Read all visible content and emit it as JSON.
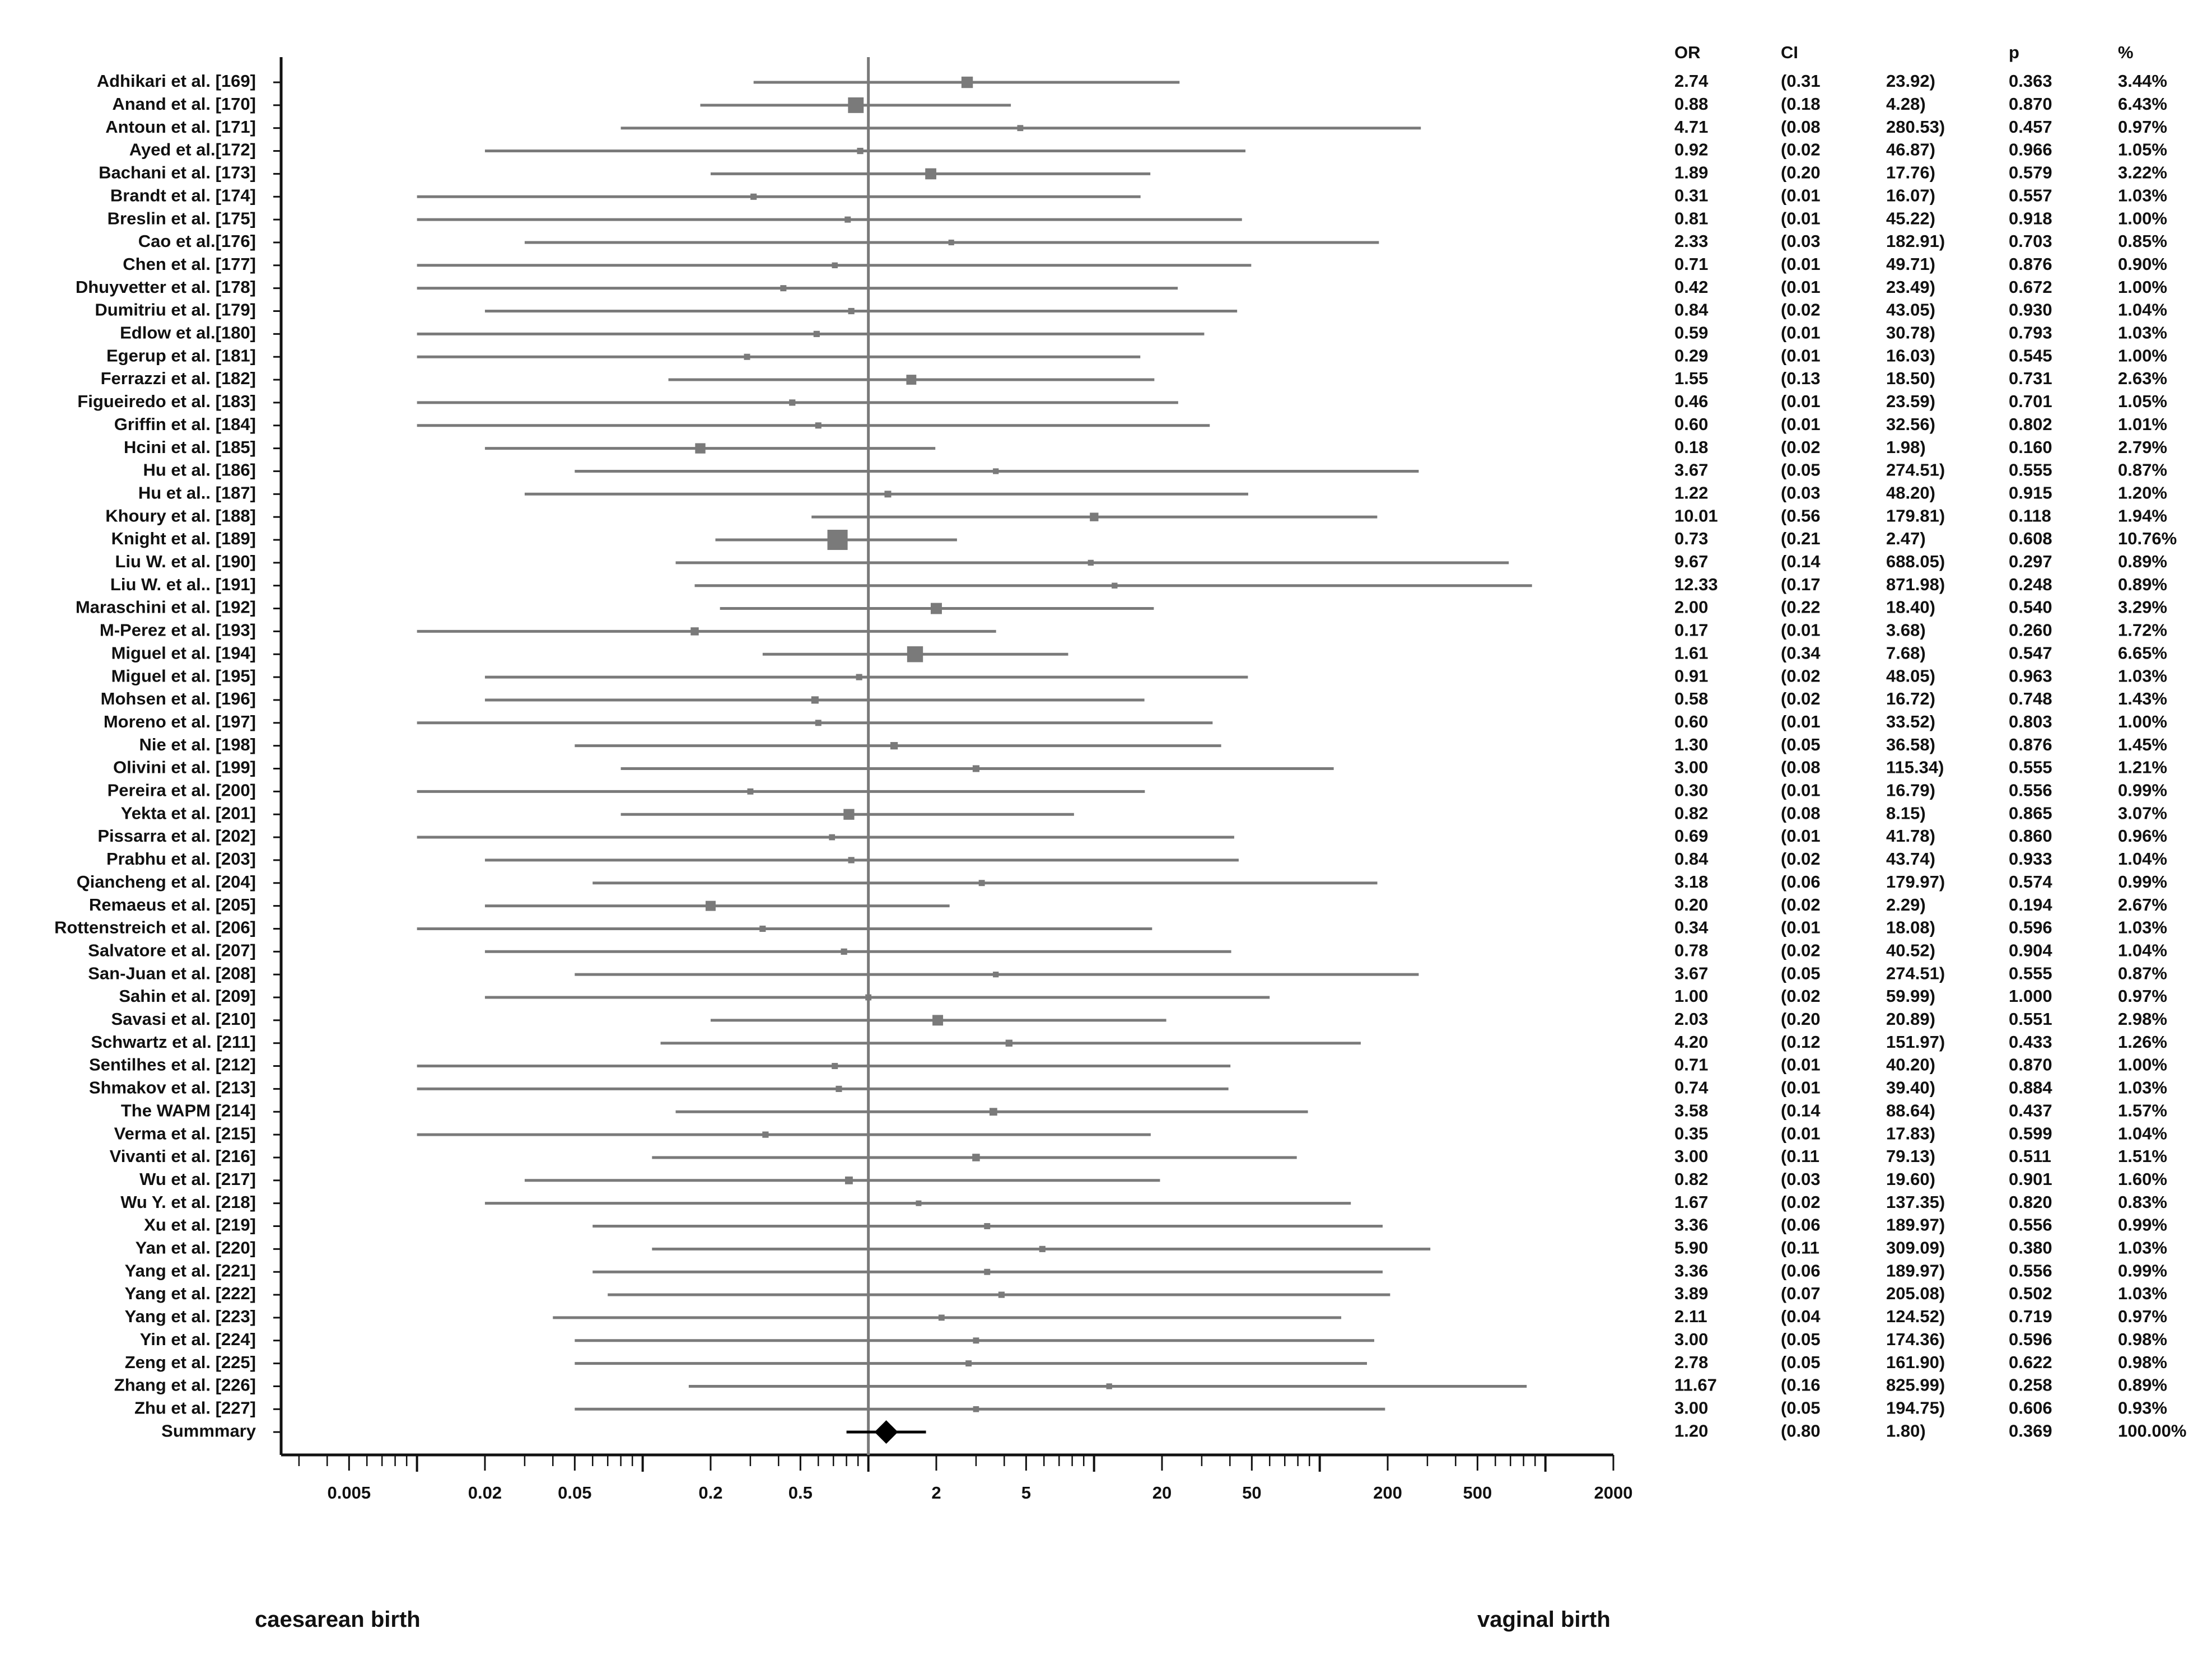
{
  "chart_data": {
    "type": "forest",
    "x_scale": "log",
    "x_ticks": [
      "0.005",
      "0.02",
      "0.05",
      "0.2",
      "0.5",
      "2",
      "5",
      "20",
      "50",
      "200",
      "500",
      "2000"
    ],
    "reference_line": 1,
    "column_headers": {
      "or": "OR",
      "ci": "CI",
      "p": "p",
      "pct": "%"
    },
    "left_caption": "caesarean birth",
    "right_caption": "vaginal birth",
    "colors": {
      "study": "#7a7a7a",
      "summary": "#000000",
      "axis": "#111111"
    },
    "studies": [
      {
        "name": "Adhikari et al. [169]",
        "or": "2.74",
        "lo": "(0.31",
        "hi": "23.92)",
        "p": "0.363",
        "w": "3.44%"
      },
      {
        "name": "Anand et al. [170]",
        "or": "0.88",
        "lo": "(0.18",
        "hi": "4.28)",
        "p": "0.870",
        "w": "6.43%"
      },
      {
        "name": "Antoun et al. [171]",
        "or": "4.71",
        "lo": "(0.08",
        "hi": "280.53)",
        "p": "0.457",
        "w": "0.97%"
      },
      {
        "name": "Ayed et al.[172]",
        "or": "0.92",
        "lo": "(0.02",
        "hi": "46.87)",
        "p": "0.966",
        "w": "1.05%"
      },
      {
        "name": "Bachani et al. [173]",
        "or": "1.89",
        "lo": "(0.20",
        "hi": "17.76)",
        "p": "0.579",
        "w": "3.22%"
      },
      {
        "name": "Brandt et al. [174]",
        "or": "0.31",
        "lo": "(0.01",
        "hi": "16.07)",
        "p": "0.557",
        "w": "1.03%"
      },
      {
        "name": "Breslin et al. [175]",
        "or": "0.81",
        "lo": "(0.01",
        "hi": "45.22)",
        "p": "0.918",
        "w": "1.00%"
      },
      {
        "name": "Cao et al.[176]",
        "or": "2.33",
        "lo": "(0.03",
        "hi": "182.91)",
        "p": "0.703",
        "w": "0.85%"
      },
      {
        "name": "Chen et al. [177]",
        "or": "0.71",
        "lo": "(0.01",
        "hi": "49.71)",
        "p": "0.876",
        "w": "0.90%"
      },
      {
        "name": "Dhuyvetter et al. [178]",
        "or": "0.42",
        "lo": "(0.01",
        "hi": "23.49)",
        "p": "0.672",
        "w": "1.00%"
      },
      {
        "name": "Dumitriu et al. [179]",
        "or": "0.84",
        "lo": "(0.02",
        "hi": "43.05)",
        "p": "0.930",
        "w": "1.04%"
      },
      {
        "name": "Edlow et al.[180]",
        "or": "0.59",
        "lo": "(0.01",
        "hi": "30.78)",
        "p": "0.793",
        "w": "1.03%"
      },
      {
        "name": "Egerup et al. [181]",
        "or": "0.29",
        "lo": "(0.01",
        "hi": "16.03)",
        "p": "0.545",
        "w": "1.00%"
      },
      {
        "name": "Ferrazzi et al. [182]",
        "or": "1.55",
        "lo": "(0.13",
        "hi": "18.50)",
        "p": "0.731",
        "w": "2.63%"
      },
      {
        "name": "Figueiredo et al. [183]",
        "or": "0.46",
        "lo": "(0.01",
        "hi": "23.59)",
        "p": "0.701",
        "w": "1.05%"
      },
      {
        "name": "Griffin et al. [184]",
        "or": "0.60",
        "lo": "(0.01",
        "hi": "32.56)",
        "p": "0.802",
        "w": "1.01%"
      },
      {
        "name": "Hcini et al. [185]",
        "or": "0.18",
        "lo": "(0.02",
        "hi": "1.98)",
        "p": "0.160",
        "w": "2.79%"
      },
      {
        "name": "Hu et al. [186]",
        "or": "3.67",
        "lo": "(0.05",
        "hi": "274.51)",
        "p": "0.555",
        "w": "0.87%"
      },
      {
        "name": "Hu et al.. [187]",
        "or": "1.22",
        "lo": "(0.03",
        "hi": "48.20)",
        "p": "0.915",
        "w": "1.20%"
      },
      {
        "name": "Khoury et al. [188]",
        "or": "10.01",
        "lo": "(0.56",
        "hi": "179.81)",
        "p": "0.118",
        "w": "1.94%"
      },
      {
        "name": "Knight et al. [189]",
        "or": "0.73",
        "lo": "(0.21",
        "hi": "2.47)",
        "p": "0.608",
        "w": "10.76%"
      },
      {
        "name": "Liu W. et al. [190]",
        "or": "9.67",
        "lo": "(0.14",
        "hi": "688.05)",
        "p": "0.297",
        "w": "0.89%"
      },
      {
        "name": "Liu W. et al.. [191]",
        "or": "12.33",
        "lo": "(0.17",
        "hi": "871.98)",
        "p": "0.248",
        "w": "0.89%"
      },
      {
        "name": "Maraschini et al. [192]",
        "or": "2.00",
        "lo": "(0.22",
        "hi": "18.40)",
        "p": "0.540",
        "w": "3.29%"
      },
      {
        "name": "M-Perez et al. [193]",
        "or": "0.17",
        "lo": "(0.01",
        "hi": "3.68)",
        "p": "0.260",
        "w": "1.72%"
      },
      {
        "name": "Miguel et al. [194]",
        "or": "1.61",
        "lo": "(0.34",
        "hi": "7.68)",
        "p": "0.547",
        "w": "6.65%"
      },
      {
        "name": "Miguel et al. [195]",
        "or": "0.91",
        "lo": "(0.02",
        "hi": "48.05)",
        "p": "0.963",
        "w": "1.03%"
      },
      {
        "name": "Mohsen et al. [196]",
        "or": "0.58",
        "lo": "(0.02",
        "hi": "16.72)",
        "p": "0.748",
        "w": "1.43%"
      },
      {
        "name": "Moreno et al. [197]",
        "or": "0.60",
        "lo": "(0.01",
        "hi": "33.52)",
        "p": "0.803",
        "w": "1.00%"
      },
      {
        "name": "Nie et al. [198]",
        "or": "1.30",
        "lo": "(0.05",
        "hi": "36.58)",
        "p": "0.876",
        "w": "1.45%"
      },
      {
        "name": "Olivini et al. [199]",
        "or": "3.00",
        "lo": "(0.08",
        "hi": "115.34)",
        "p": "0.555",
        "w": "1.21%"
      },
      {
        "name": "Pereira et al. [200]",
        "or": "0.30",
        "lo": "(0.01",
        "hi": "16.79)",
        "p": "0.556",
        "w": "0.99%"
      },
      {
        "name": "Yekta et al. [201]",
        "or": "0.82",
        "lo": "(0.08",
        "hi": "8.15)",
        "p": "0.865",
        "w": "3.07%"
      },
      {
        "name": "Pissarra et al. [202]",
        "or": "0.69",
        "lo": "(0.01",
        "hi": "41.78)",
        "p": "0.860",
        "w": "0.96%"
      },
      {
        "name": "Prabhu et al. [203]",
        "or": "0.84",
        "lo": "(0.02",
        "hi": "43.74)",
        "p": "0.933",
        "w": "1.04%"
      },
      {
        "name": "Qiancheng et al. [204]",
        "or": "3.18",
        "lo": "(0.06",
        "hi": "179.97)",
        "p": "0.574",
        "w": "0.99%"
      },
      {
        "name": "Remaeus et al. [205]",
        "or": "0.20",
        "lo": "(0.02",
        "hi": "2.29)",
        "p": "0.194",
        "w": "2.67%"
      },
      {
        "name": "Rottenstreich et al. [206]",
        "or": "0.34",
        "lo": "(0.01",
        "hi": "18.08)",
        "p": "0.596",
        "w": "1.03%"
      },
      {
        "name": "Salvatore et al. [207]",
        "or": "0.78",
        "lo": "(0.02",
        "hi": "40.52)",
        "p": "0.904",
        "w": "1.04%"
      },
      {
        "name": "San-Juan et al. [208]",
        "or": "3.67",
        "lo": "(0.05",
        "hi": "274.51)",
        "p": "0.555",
        "w": "0.87%"
      },
      {
        "name": "Sahin et al. [209]",
        "or": "1.00",
        "lo": "(0.02",
        "hi": "59.99)",
        "p": "1.000",
        "w": "0.97%"
      },
      {
        "name": "Savasi et al. [210]",
        "or": "2.03",
        "lo": "(0.20",
        "hi": "20.89)",
        "p": "0.551",
        "w": "2.98%"
      },
      {
        "name": "Schwartz et al. [211]",
        "or": "4.20",
        "lo": "(0.12",
        "hi": "151.97)",
        "p": "0.433",
        "w": "1.26%"
      },
      {
        "name": "Sentilhes et al. [212]",
        "or": "0.71",
        "lo": "(0.01",
        "hi": "40.20)",
        "p": "0.870",
        "w": "1.00%"
      },
      {
        "name": "Shmakov et al. [213]",
        "or": "0.74",
        "lo": "(0.01",
        "hi": "39.40)",
        "p": "0.884",
        "w": "1.03%"
      },
      {
        "name": "The WAPM [214]",
        "or": "3.58",
        "lo": "(0.14",
        "hi": "88.64)",
        "p": "0.437",
        "w": "1.57%"
      },
      {
        "name": "Verma et al. [215]",
        "or": "0.35",
        "lo": "(0.01",
        "hi": "17.83)",
        "p": "0.599",
        "w": "1.04%"
      },
      {
        "name": "Vivanti et al. [216]",
        "or": "3.00",
        "lo": "(0.11",
        "hi": "79.13)",
        "p": "0.511",
        "w": "1.51%"
      },
      {
        "name": "Wu et al. [217]",
        "or": "0.82",
        "lo": "(0.03",
        "hi": "19.60)",
        "p": "0.901",
        "w": "1.60%"
      },
      {
        "name": "Wu Y. et al. [218]",
        "or": "1.67",
        "lo": "(0.02",
        "hi": "137.35)",
        "p": "0.820",
        "w": "0.83%"
      },
      {
        "name": "Xu et al. [219]",
        "or": "3.36",
        "lo": "(0.06",
        "hi": "189.97)",
        "p": "0.556",
        "w": "0.99%"
      },
      {
        "name": "Yan et al. [220]",
        "or": "5.90",
        "lo": "(0.11",
        "hi": "309.09)",
        "p": "0.380",
        "w": "1.03%"
      },
      {
        "name": "Yang et al. [221]",
        "or": "3.36",
        "lo": "(0.06",
        "hi": "189.97)",
        "p": "0.556",
        "w": "0.99%"
      },
      {
        "name": "Yang et al. [222]",
        "or": "3.89",
        "lo": "(0.07",
        "hi": "205.08)",
        "p": "0.502",
        "w": "1.03%"
      },
      {
        "name": "Yang et al. [223]",
        "or": "2.11",
        "lo": "(0.04",
        "hi": "124.52)",
        "p": "0.719",
        "w": "0.97%"
      },
      {
        "name": "Yin et al. [224]",
        "or": "3.00",
        "lo": "(0.05",
        "hi": "174.36)",
        "p": "0.596",
        "w": "0.98%"
      },
      {
        "name": "Zeng et al. [225]",
        "or": "2.78",
        "lo": "(0.05",
        "hi": "161.90)",
        "p": "0.622",
        "w": "0.98%"
      },
      {
        "name": "Zhang et al. [226]",
        "or": "11.67",
        "lo": "(0.16",
        "hi": "825.99)",
        "p": "0.258",
        "w": "0.89%"
      },
      {
        "name": "Zhu et al. [227]",
        "or": "3.00",
        "lo": "(0.05",
        "hi": "194.75)",
        "p": "0.606",
        "w": "0.93%"
      }
    ],
    "summary": {
      "name": "Summmary",
      "or": "1.20",
      "lo": "(0.80",
      "hi": "1.80)",
      "p": "0.369",
      "w": "100.00%"
    }
  }
}
